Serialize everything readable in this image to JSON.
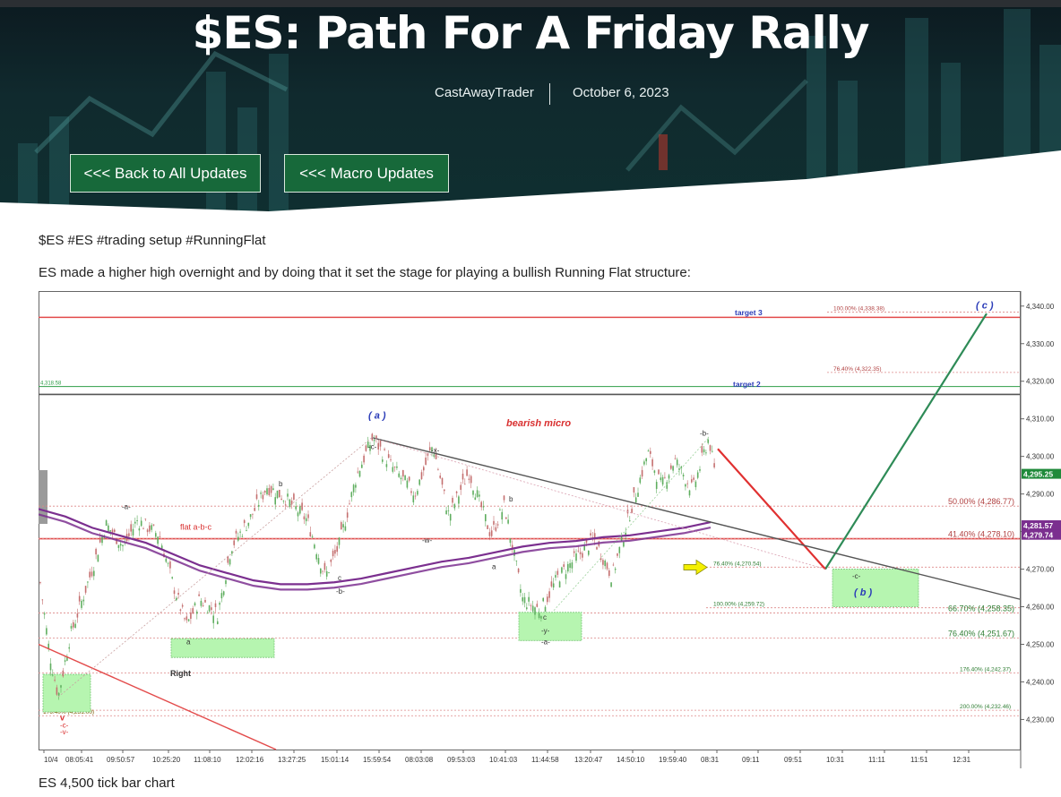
{
  "hero": {
    "title": "$ES: Path For A Friday Rally",
    "author": "CastAwayTrader",
    "date": "October 6, 2023",
    "buttons": {
      "back": "<<< Back to All Updates",
      "macro": "<<< Macro Updates"
    },
    "accent_color": "#17693a"
  },
  "post": {
    "tags": "$ES #ES #trading setup #RunningFlat",
    "intro": "ES made a higher high overnight and by doing that it set the stage for playing a bullish Running Flat structure:",
    "caption": "ES 4,500 tick bar chart"
  },
  "chart_data": {
    "type": "line",
    "title": "",
    "xlabel": "",
    "ylabel": "",
    "ylim": [
      4222,
      4344
    ],
    "y_ticks": [
      "4,340.00",
      "4,330.00",
      "4,320.00",
      "4,310.00",
      "4,300.00",
      "4,290.00",
      "4,280.00",
      "4,270.00",
      "4,260.00",
      "4,250.00",
      "4,240.00",
      "4,230.00"
    ],
    "x_ticks": [
      "10/4",
      "08:05:41",
      "09:50:57",
      "10:25:20",
      "11:08:10",
      "12:02:16",
      "13:27:25",
      "15:01:14",
      "15:59:54",
      "08:03:08",
      "09:53:03",
      "10:41:03",
      "11:44:58",
      "13:20:47",
      "14:50:10",
      "19:59:40",
      "08:31",
      "09:11",
      "09:51",
      "10:31",
      "11:11",
      "11:51",
      "12:31"
    ],
    "price_badges": [
      {
        "label": "4,295.25",
        "value": 4295.25,
        "color": "#1f8a3a"
      },
      {
        "label": "4,281.57",
        "value": 4281.57,
        "color": "#7b2f8f"
      },
      {
        "label": "4,279.74",
        "value": 4279.74,
        "color": "#7b2f8f"
      }
    ],
    "horizontal_levels": [
      {
        "value": 4337.0,
        "color": "#e34b4b"
      },
      {
        "value": 4316.5,
        "color": "#555555"
      },
      {
        "value": 4278.1,
        "color": "#e34b4b"
      },
      {
        "value": 4318.58,
        "color": "#2e9e47",
        "label": "4,318.58"
      }
    ],
    "fib_levels": [
      {
        "label": "100.00% (4,338.38)",
        "value": 4338.38
      },
      {
        "label": "76.40% (4,322.35)",
        "value": 4322.35
      },
      {
        "label": "50.00% (4,286.77)",
        "value": 4286.77
      },
      {
        "label": "41.40% (4,278.10)",
        "value": 4278.1
      },
      {
        "label": "76.40% (4,270.54)",
        "value": 4270.54
      },
      {
        "label": "100.00% (4,259.72)",
        "value": 4259.72
      },
      {
        "label": "66.70% (4,258.35)",
        "value": 4258.35
      },
      {
        "label": "76.40% (4,251.67)",
        "value": 4251.67
      },
      {
        "label": "176.40% (4,242.37)",
        "value": 4242.37
      },
      {
        "label": "200.00% (4,232.46)",
        "value": 4232.46
      },
      {
        "label": "176.40% (4,231.00)",
        "value": 4231.0
      }
    ],
    "labels": {
      "target3": "target 3",
      "target2": "target 2",
      "bearish_micro": "bearish micro",
      "flat_abc": "flat a-b-c",
      "right": "Right",
      "wave_a": "( a )",
      "wave_b": "( b )",
      "wave_c": "( c )",
      "c_minus": "-c-",
      "b_minus": "-b-",
      "x_minus": "-x-",
      "w_minus": "-w-",
      "y_minus": "-y-",
      "a_minus": "-a-",
      "v_minus": "-v-",
      "v": "v",
      "a": "a",
      "b": "b",
      "c": "c"
    },
    "series": [
      {
        "name": "",
        "color": "#7b2f8f",
        "x": [
          0,
          30,
          60,
          90,
          120,
          150,
          180,
          210,
          240,
          270,
          300,
          330,
          360,
          390,
          420,
          450,
          480,
          510,
          540,
          570,
          600,
          630,
          660,
          690,
          720,
          750
        ],
        "values": [
          4286,
          4284,
          4281,
          4279,
          4277,
          4274,
          4271,
          4269,
          4267,
          4266,
          4266,
          4266.5,
          4267.5,
          4269,
          4270.5,
          4272,
          4273,
          4274.5,
          4276,
          4277,
          4277.5,
          4278.5,
          4279,
          4280,
          4281,
          4282.5
        ]
      },
      {
        "name": "",
        "color": "#2e8b57",
        "x": [
          878,
          1058
        ],
        "values": [
          4270,
          4338
        ]
      },
      {
        "name": "",
        "color": "#e03030",
        "x": [
          758,
          878
        ],
        "values": [
          4302,
          4270
        ]
      }
    ]
  }
}
